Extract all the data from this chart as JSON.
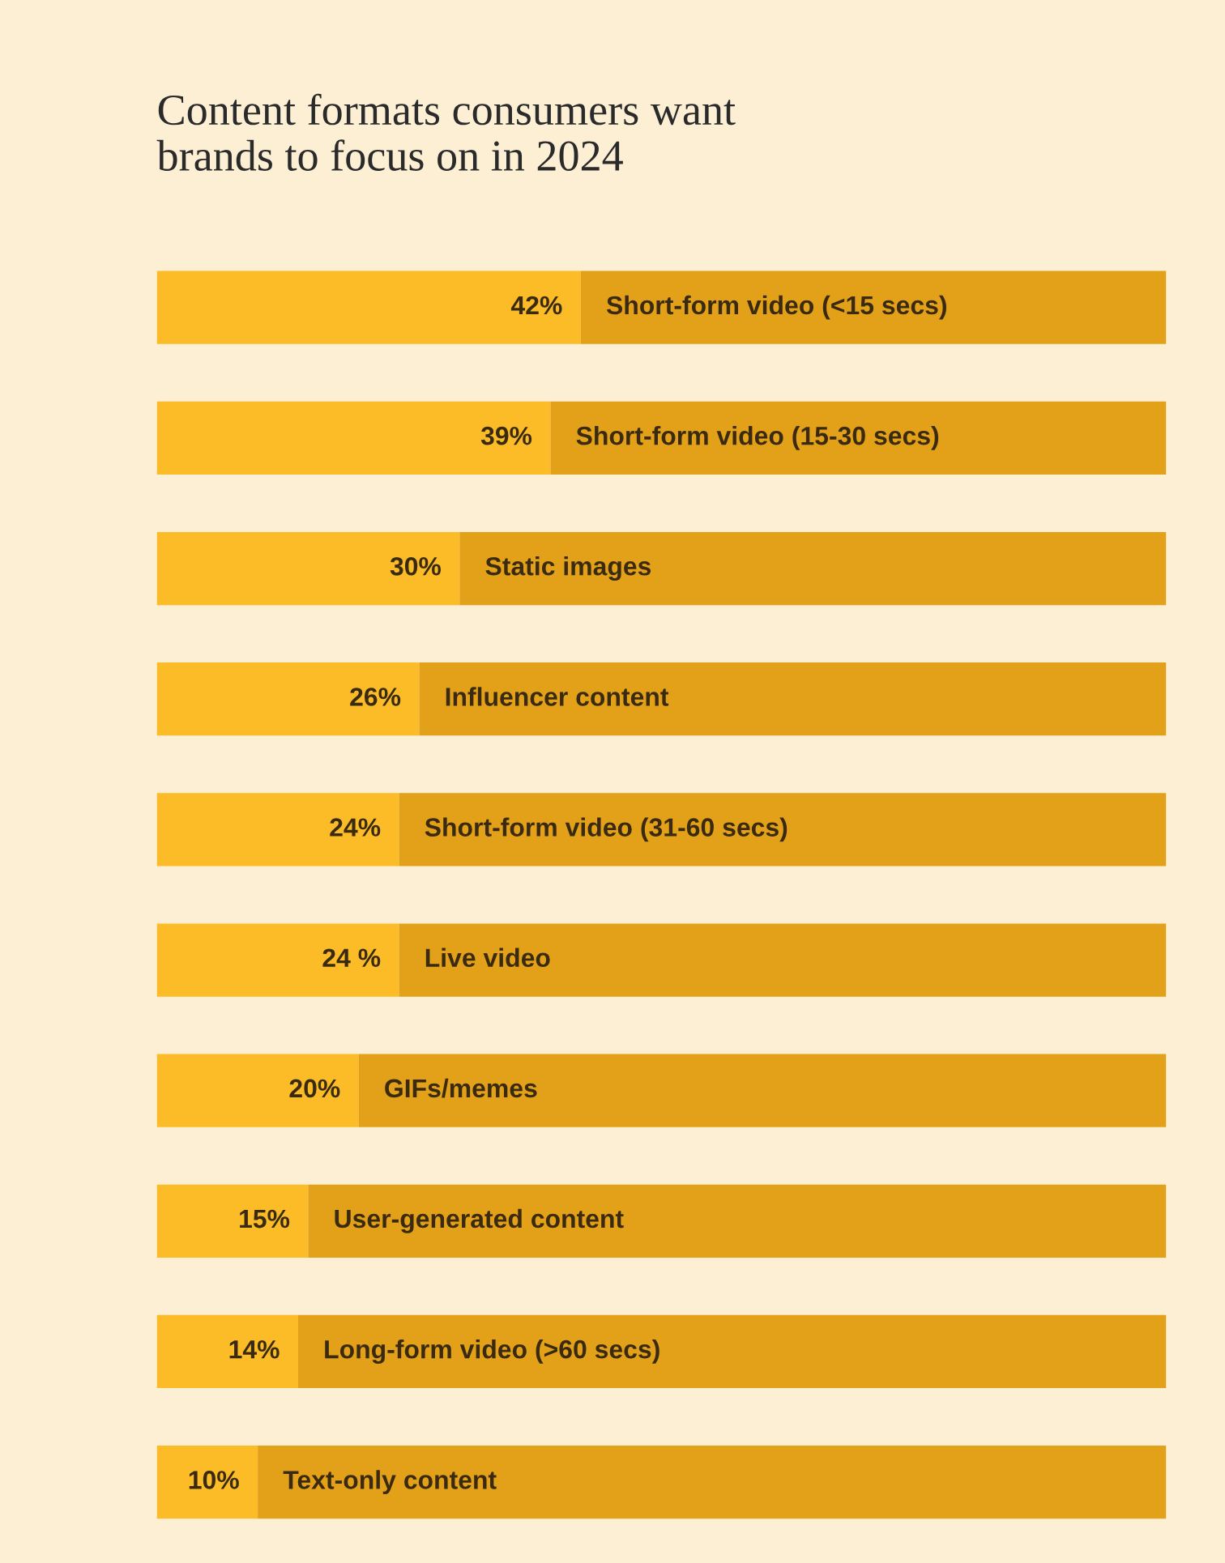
{
  "chart_data": {
    "type": "bar",
    "orientation": "horizontal",
    "stacked": true,
    "title": "Content formats consumers want\nbrands to focus on in 2024",
    "categories": [
      "Short-form video (<15 secs)",
      "Short-form video (15-30 secs)",
      "Static images",
      "Influencer content",
      "Short-form video (31-60 secs)",
      "Live video",
      "GIFs/memes",
      "User-generated content",
      "Long-form video (>60 secs)",
      "Text-only content"
    ],
    "series": [
      {
        "color": "#fbbc27",
        "values": [
          42,
          39,
          30,
          26,
          24,
          24,
          20,
          15,
          14,
          10
        ],
        "value_labels": [
          "42%",
          "39%",
          "30%",
          "26%",
          "24%",
          "24 %",
          "20%",
          "15%",
          "14%",
          "10%"
        ]
      },
      {
        "color": "#e3a119",
        "values": [
          58,
          61,
          70,
          74,
          76,
          76,
          80,
          85,
          86,
          90
        ]
      }
    ],
    "legend": false
  }
}
